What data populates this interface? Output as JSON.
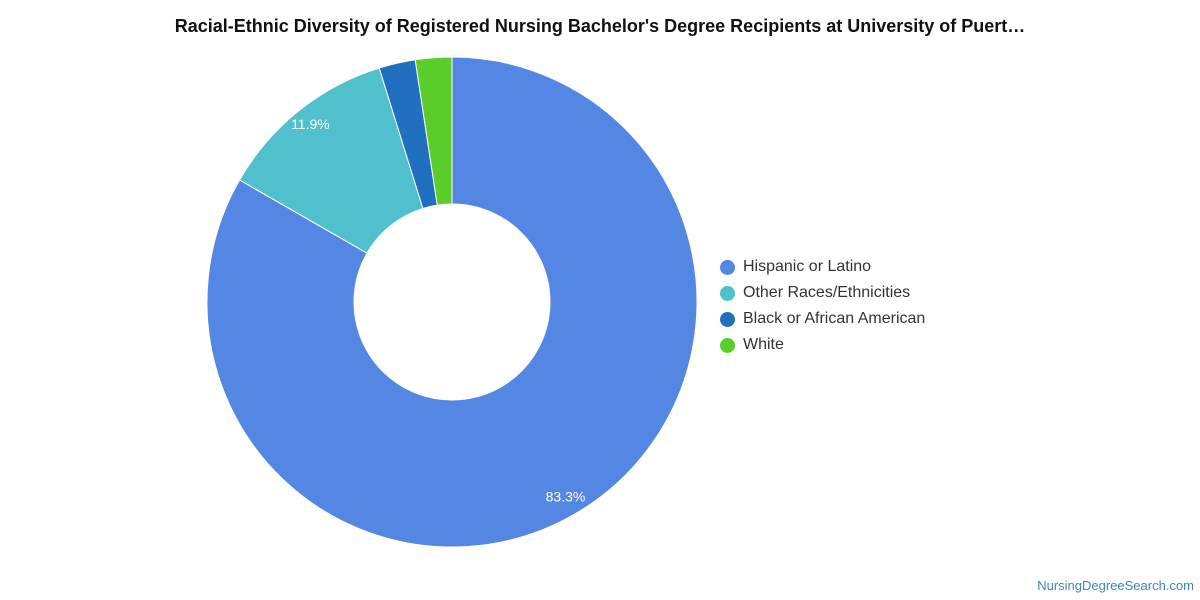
{
  "chart_data": {
    "type": "pie",
    "title": "Racial-Ethnic Diversity of Registered Nursing Bachelor's Degree Recipients at University of Puert…",
    "series": [
      {
        "name": "Hispanic or Latino",
        "value": 83.3,
        "label": "83.3%",
        "color": "#5486e3"
      },
      {
        "name": "Other Races/Ethnicities",
        "value": 11.9,
        "label": "11.9%",
        "color": "#50c0cc"
      },
      {
        "name": "Black or African American",
        "value": 2.4,
        "label": "",
        "color": "#2170bf"
      },
      {
        "name": "White",
        "value": 2.4,
        "label": "",
        "color": "#5acd2a"
      }
    ],
    "donut": true,
    "legend_position": "right"
  },
  "watermark": "NursingDegreeSearch.com"
}
